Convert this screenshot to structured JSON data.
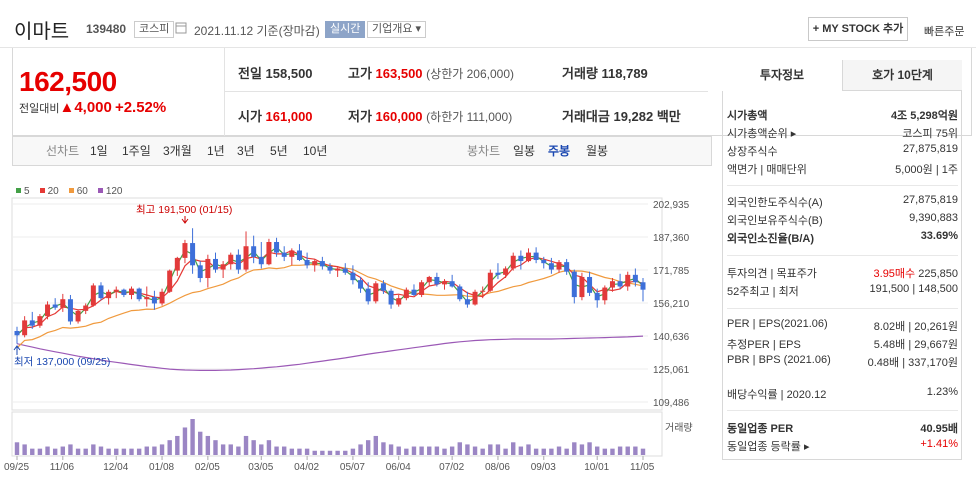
{
  "header": {
    "name": "이마트",
    "code": "139480",
    "market": "코스피",
    "date": "2021.11.12 기준(장마감)",
    "realtime": "실시간",
    "company_info": "기업개요 ▾",
    "mystock": "+ MY STOCK 추가",
    "quick_order": "빠른주문"
  },
  "price": {
    "current": "162,500",
    "change_label": "전일대비",
    "change": "▲4,000",
    "rate": "+2.52%"
  },
  "stats": {
    "prev_label": "전일",
    "prev": "158,500",
    "high_label": "고가",
    "high": "163,500",
    "upper_limit": "(상한가 206,000)",
    "volume_label": "거래량",
    "volume": "118,789",
    "open_label": "시가",
    "open": "161,000",
    "low_label": "저가",
    "low": "160,000",
    "lower_limit": "(하한가 111,000)",
    "amount_label": "거래대금",
    "amount": "19,282 백만"
  },
  "periods": {
    "line_label": "선차트",
    "line": [
      "1일",
      "1주일",
      "3개월",
      "1년",
      "3년",
      "5년",
      "10년"
    ],
    "candle_label": "봉차트",
    "candle": [
      "일봉",
      "주봉",
      "월봉"
    ],
    "selected": "주봉"
  },
  "sidebar": {
    "tab_info": "투자정보",
    "tab_quote": "호가 10단계",
    "rows": [
      {
        "l": "시가총액",
        "v": "4조 5,298억원",
        "b": true
      },
      {
        "l": "시가총액순위 ▸",
        "v": "코스피 75위"
      },
      {
        "l": "상장주식수",
        "v": "27,875,819"
      },
      {
        "l": "액면가 | 매매단위",
        "v": "5,000원 | 1주"
      },
      {
        "l": "외국인한도주식수(A)",
        "v": "27,875,819"
      },
      {
        "l": "외국인보유주식수(B)",
        "v": "9,390,883"
      },
      {
        "l": "외국인소진율(B/A)",
        "v": "33.69%",
        "b": true
      },
      {
        "l": "투자의견 | 목표주가",
        "v1": "3.95매수",
        "v": "225,850"
      },
      {
        "l": "52주최고 | 최저",
        "v": "191,500 | 148,500"
      },
      {
        "l": "PER | EPS(2021.06)",
        "v": "8.02배 | 20,261원"
      },
      {
        "l": "추정PER | EPS",
        "v": "5.48배 | 29,667원"
      },
      {
        "l": "PBR | BPS (2021.06)",
        "v": "0.48배 | 337,170원"
      },
      {
        "l": "배당수익률 | 2020.12",
        "v": "1.23%"
      },
      {
        "l": "동일업종 PER",
        "v": "40.95배",
        "b": true
      },
      {
        "l": "동일업종 등락률 ▸",
        "v": "+1.41%",
        "red": true
      }
    ]
  },
  "chart_data": {
    "type": "candlestick",
    "legend": [
      "5",
      "20",
      "60",
      "120"
    ],
    "legend_colors": [
      "#43a047",
      "#e53935",
      "#f09a3e",
      "#9b59b6"
    ],
    "y_ticks": [
      "202,935",
      "187,360",
      "171,785",
      "156,210",
      "140,636",
      "125,061",
      "109,486"
    ],
    "ylim": [
      109486,
      202935
    ],
    "x_ticks": [
      "09/25",
      "11/06",
      "12/04",
      "01/08",
      "02/05",
      "03/05",
      "04/02",
      "05/07",
      "06/04",
      "07/02",
      "08/06",
      "09/03",
      "10/01",
      "11/05"
    ],
    "annotations": {
      "max": "최고 191,500 (01/15)",
      "min": "최저 137,000 (09/25)"
    },
    "volume_label": "거래량",
    "candles": [
      [
        143000,
        145000,
        137000,
        141000
      ],
      [
        141000,
        150000,
        140000,
        148000
      ],
      [
        148000,
        152000,
        144000,
        145500
      ],
      [
        145500,
        151000,
        144500,
        150000
      ],
      [
        150000,
        157000,
        148500,
        155500
      ],
      [
        155500,
        158500,
        153000,
        154000
      ],
      [
        154000,
        160500,
        152000,
        158000
      ],
      [
        158000,
        160000,
        146000,
        147500
      ],
      [
        147500,
        153000,
        146500,
        152500
      ],
      [
        152500,
        156000,
        151000,
        155000
      ],
      [
        155000,
        165500,
        154500,
        164500
      ],
      [
        164500,
        166000,
        157500,
        158500
      ],
      [
        158500,
        162500,
        155500,
        161500
      ],
      [
        161500,
        164000,
        158500,
        162500
      ],
      [
        162500,
        163000,
        159000,
        160000
      ],
      [
        160000,
        164000,
        158000,
        163000
      ],
      [
        163000,
        163500,
        157000,
        158000
      ],
      [
        158000,
        164000,
        154500,
        159000
      ],
      [
        159000,
        162000,
        153000,
        156000
      ],
      [
        156000,
        163000,
        155000,
        161500
      ],
      [
        161500,
        172000,
        161000,
        171500
      ],
      [
        171500,
        178000,
        169000,
        177500
      ],
      [
        177500,
        186000,
        175000,
        184500
      ],
      [
        184500,
        191500,
        170000,
        174000
      ],
      [
        174000,
        176000,
        166000,
        168000
      ],
      [
        168000,
        179000,
        163500,
        177000
      ],
      [
        177000,
        180000,
        170500,
        172000
      ],
      [
        172000,
        176000,
        168000,
        174500
      ],
      [
        174500,
        180000,
        172000,
        179000
      ],
      [
        179000,
        181500,
        170000,
        172000
      ],
      [
        172000,
        190000,
        171000,
        183000
      ],
      [
        183000,
        188000,
        175000,
        178000
      ],
      [
        178000,
        185000,
        172500,
        174500
      ],
      [
        174500,
        186500,
        174000,
        185000
      ],
      [
        185000,
        187000,
        178000,
        180000
      ],
      [
        180000,
        183000,
        176000,
        178000
      ],
      [
        178000,
        182000,
        174000,
        181000
      ],
      [
        181000,
        184000,
        176000,
        176500
      ],
      [
        176500,
        180000,
        172500,
        174000
      ],
      [
        174000,
        177000,
        171000,
        176000
      ],
      [
        176000,
        178000,
        172000,
        173500
      ],
      [
        173500,
        175000,
        170000,
        171500
      ],
      [
        171500,
        173000,
        168500,
        172500
      ],
      [
        172500,
        175000,
        169500,
        170500
      ],
      [
        170500,
        174000,
        165000,
        167000
      ],
      [
        167000,
        168500,
        161000,
        163000
      ],
      [
        163000,
        166000,
        155500,
        157000
      ],
      [
        157000,
        166500,
        156000,
        165500
      ],
      [
        165500,
        167000,
        160500,
        162000
      ],
      [
        162000,
        163000,
        153500,
        155500
      ],
      [
        155500,
        160000,
        154500,
        158500
      ],
      [
        158500,
        163500,
        157500,
        162500
      ],
      [
        162500,
        165000,
        159500,
        160000
      ],
      [
        160000,
        167000,
        159000,
        166000
      ],
      [
        166000,
        169000,
        164500,
        168500
      ],
      [
        168500,
        170500,
        164000,
        165000
      ],
      [
        165000,
        167500,
        162500,
        166500
      ],
      [
        166500,
        169500,
        163500,
        164000
      ],
      [
        164000,
        165000,
        157000,
        158000
      ],
      [
        158000,
        161500,
        154000,
        155500
      ],
      [
        155500,
        162500,
        155000,
        161500
      ],
      [
        161500,
        164000,
        158500,
        162000
      ],
      [
        162000,
        172000,
        161500,
        170500
      ],
      [
        170500,
        175000,
        167500,
        169500
      ],
      [
        169500,
        173500,
        168000,
        172500
      ],
      [
        172500,
        180000,
        171500,
        178500
      ],
      [
        178500,
        181000,
        172000,
        176000
      ],
      [
        176000,
        182000,
        175500,
        180000
      ],
      [
        180000,
        182500,
        175000,
        176500
      ],
      [
        176500,
        178000,
        172500,
        175000
      ],
      [
        175000,
        177500,
        170000,
        172000
      ],
      [
        172000,
        176500,
        170500,
        175500
      ],
      [
        175500,
        177000,
        169500,
        171000
      ],
      [
        171000,
        172000,
        156000,
        159000
      ],
      [
        159000,
        170500,
        157500,
        168500
      ],
      [
        168500,
        171000,
        159500,
        161000
      ],
      [
        161000,
        163000,
        154000,
        157500
      ],
      [
        157500,
        164500,
        155500,
        163500
      ],
      [
        163500,
        168000,
        161500,
        166500
      ],
      [
        166500,
        170000,
        163000,
        164000
      ],
      [
        164000,
        171000,
        162000,
        169500
      ],
      [
        169500,
        172500,
        164000,
        166000
      ],
      [
        166000,
        168000,
        157000,
        162500
      ]
    ],
    "volume": [
      6,
      5,
      3,
      3,
      4,
      3,
      4,
      5,
      3,
      3,
      5,
      4,
      3,
      3,
      3,
      3,
      3,
      4,
      4,
      5,
      7,
      9,
      13,
      17,
      11,
      9,
      7,
      5,
      5,
      4,
      9,
      7,
      5,
      7,
      4,
      4,
      3,
      3,
      3,
      2,
      2,
      2,
      2,
      2,
      3,
      5,
      7,
      9,
      6,
      5,
      4,
      3,
      4,
      4,
      4,
      4,
      3,
      4,
      6,
      5,
      4,
      3,
      5,
      5,
      3,
      6,
      4,
      5,
      3,
      3,
      3,
      4,
      3,
      6,
      5,
      6,
      4,
      3,
      3,
      4,
      4,
      4,
      3
    ],
    "ma120": [
      137000,
      136200,
      135400,
      134600,
      133900,
      133200,
      132500,
      131800,
      131100,
      130500,
      129900,
      129300,
      128700,
      128200,
      127700,
      127200,
      126700,
      126200,
      125800,
      125400,
      125000,
      124800,
      124600,
      124500,
      124400,
      124400,
      124400,
      124500,
      124600,
      124800,
      125000,
      125200,
      125500,
      125800,
      126100,
      126500,
      126900,
      127300,
      127800,
      128300,
      128800,
      129300,
      129800,
      130300,
      130900,
      131500,
      132100,
      132600,
      133100,
      133600,
      134100,
      134600,
      135100,
      135600,
      136100,
      136600,
      137100,
      137500,
      137900,
      138200,
      138500,
      138700,
      138900,
      139000,
      139100,
      139200,
      139200,
      139200,
      139200,
      139200,
      139200,
      139300,
      139400,
      139500,
      139600,
      139700,
      139800,
      139900,
      140000,
      140100,
      140200,
      140400,
      140600
    ]
  }
}
